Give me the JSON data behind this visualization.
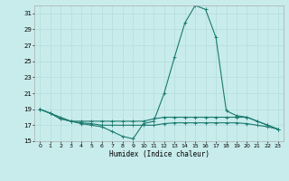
{
  "xlabel": "Humidex (Indice chaleur)",
  "background_color": "#c8ecec",
  "grid_color": "#b8dede",
  "line_color": "#1a7a6e",
  "xlim": [
    -0.5,
    23.5
  ],
  "ylim": [
    15,
    32
  ],
  "yticks": [
    15,
    17,
    19,
    21,
    23,
    25,
    27,
    29,
    31
  ],
  "xticks": [
    0,
    1,
    2,
    3,
    4,
    5,
    6,
    7,
    8,
    9,
    10,
    11,
    12,
    13,
    14,
    15,
    16,
    17,
    18,
    19,
    20,
    21,
    22,
    23
  ],
  "series": [
    [
      19.0,
      18.5,
      18.0,
      17.5,
      17.2,
      17.0,
      16.8,
      16.2,
      15.6,
      15.3,
      17.2,
      17.5,
      21.0,
      25.5,
      29.8,
      32.0,
      31.5,
      28.0,
      18.8,
      18.2,
      18.0,
      17.5,
      17.0,
      16.5
    ],
    [
      19.0,
      18.5,
      17.8,
      17.5,
      17.5,
      17.5,
      17.5,
      17.5,
      17.5,
      17.5,
      17.5,
      17.8,
      18.0,
      18.0,
      18.0,
      18.0,
      18.0,
      18.0,
      18.0,
      18.0,
      18.0,
      17.5,
      17.0,
      16.5
    ],
    [
      19.0,
      18.5,
      17.8,
      17.5,
      17.3,
      17.2,
      17.0,
      17.0,
      17.0,
      17.0,
      17.0,
      17.0,
      17.2,
      17.3,
      17.3,
      17.3,
      17.3,
      17.3,
      17.3,
      17.3,
      17.2,
      17.0,
      16.8,
      16.5
    ]
  ]
}
